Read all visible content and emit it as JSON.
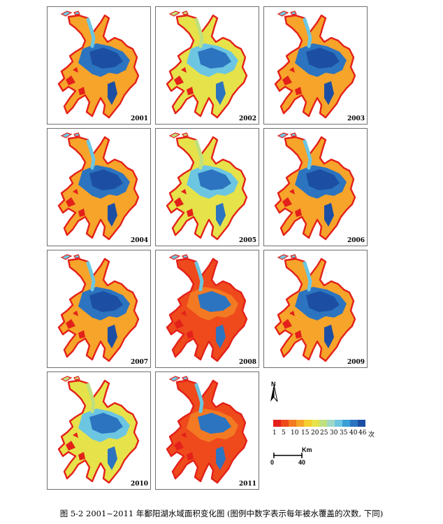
{
  "figure": {
    "caption": "图 5-2  2001~2011 年鄱阳湖水域面积变化图 (图例中数字表示每年被水覆盖的次数, 下同)",
    "panels": [
      {
        "year": "2001",
        "dominant": "mixed"
      },
      {
        "year": "2002",
        "dominant": "high"
      },
      {
        "year": "2003",
        "dominant": "mixed"
      },
      {
        "year": "2004",
        "dominant": "mixed"
      },
      {
        "year": "2005",
        "dominant": "high"
      },
      {
        "year": "2006",
        "dominant": "mixed"
      },
      {
        "year": "2007",
        "dominant": "mixed"
      },
      {
        "year": "2008",
        "dominant": "low"
      },
      {
        "year": "2009",
        "dominant": "mixed"
      },
      {
        "year": "2010",
        "dominant": "high"
      },
      {
        "year": "2011",
        "dominant": "low"
      }
    ],
    "north_label": "N",
    "legend": {
      "colors": [
        "#e3201a",
        "#ee4a1c",
        "#f37a22",
        "#f6a42a",
        "#f5cf2d",
        "#e6e24a",
        "#bfe07e",
        "#9fd8c8",
        "#6cc6e2",
        "#3a9fd6",
        "#2c74c0",
        "#1c4fa3"
      ],
      "ticks": [
        "1",
        "5",
        "10",
        "15",
        "20",
        "25",
        "30",
        "35",
        "40",
        "46"
      ],
      "unit": "次"
    },
    "scale_bar": {
      "unit": "Km",
      "start": "0",
      "end": "40"
    }
  }
}
